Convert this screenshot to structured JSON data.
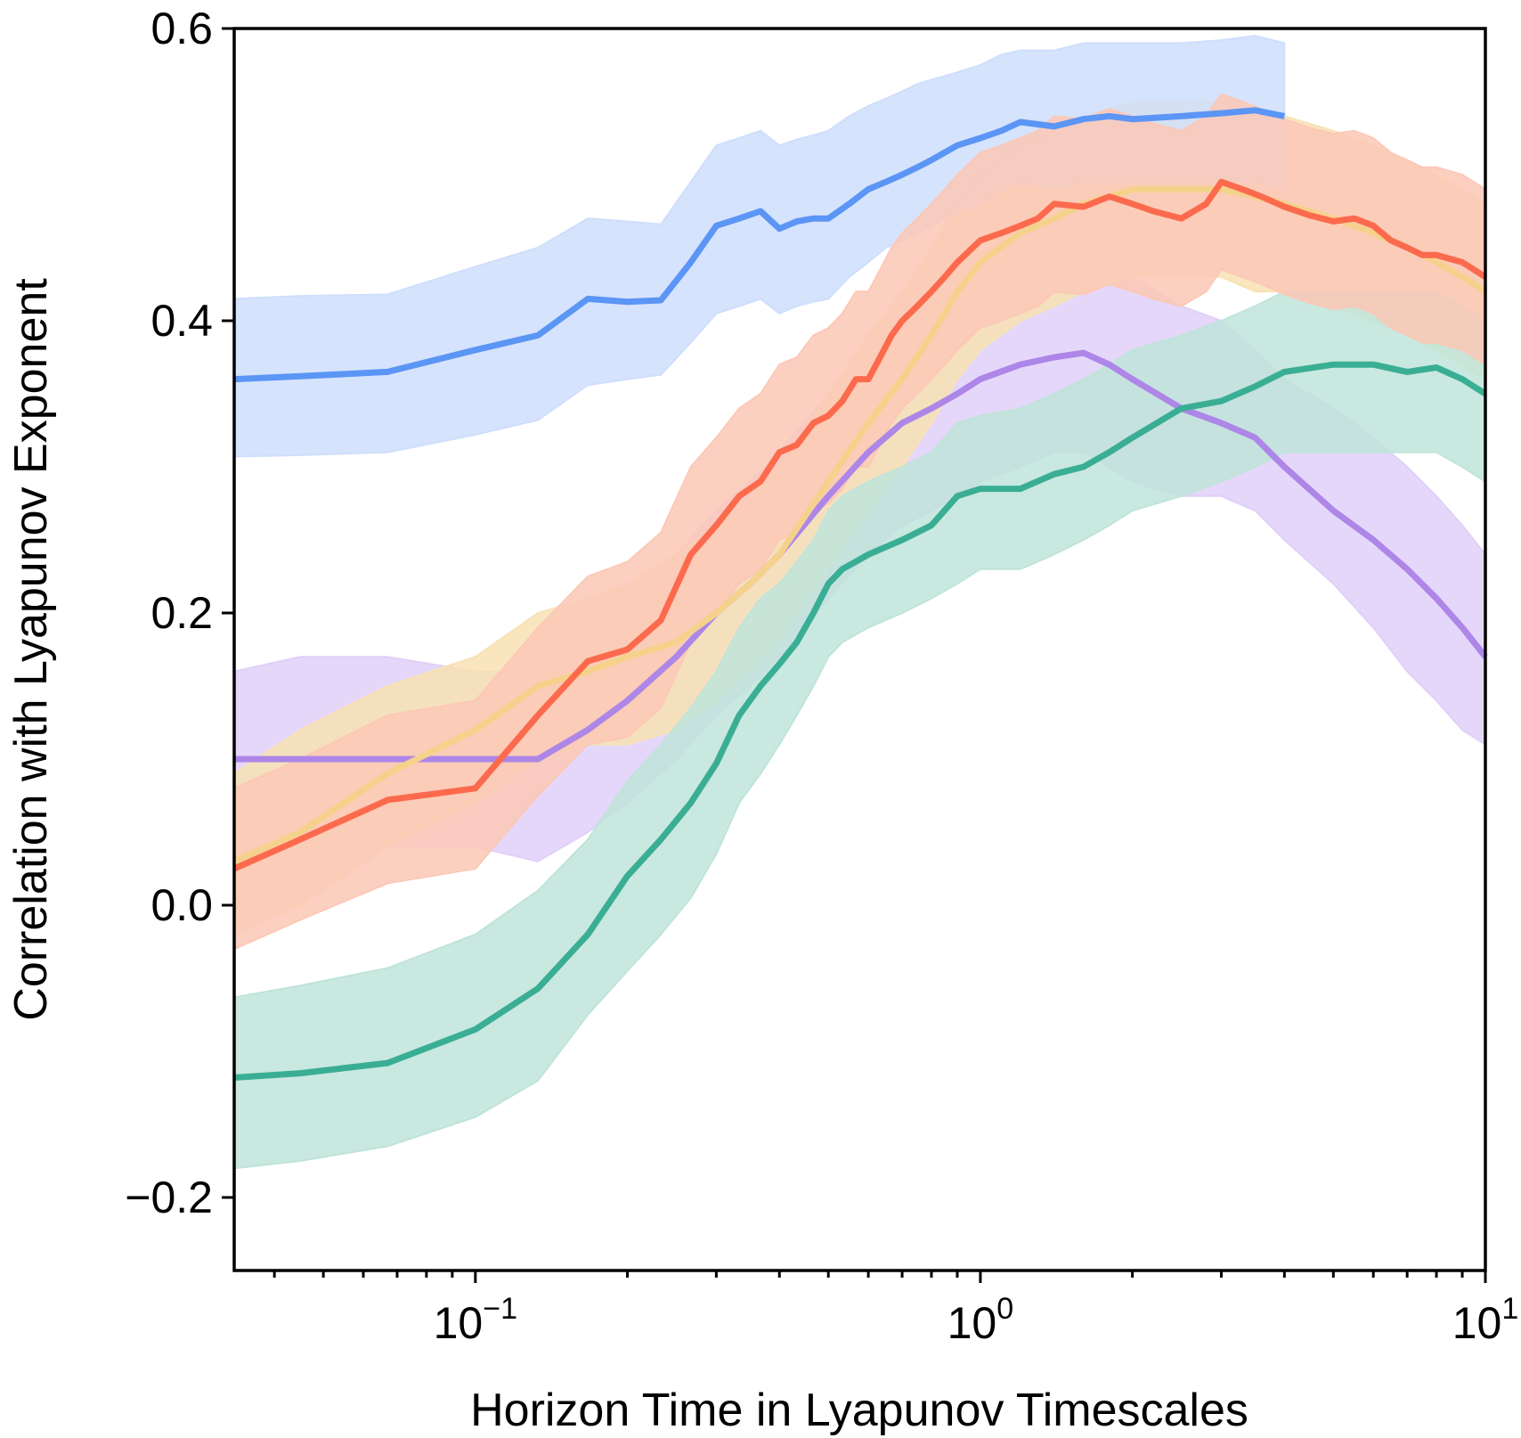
{
  "chart_data": {
    "type": "line",
    "title": "",
    "xlabel": "Horizon Time in Lyapunov Timescales",
    "ylabel": "Correlation with Lyapunov Exponent",
    "xscale": "log",
    "xlim": [
      0.0333,
      10
    ],
    "ylim": [
      -0.25,
      0.6
    ],
    "x_ticks": [
      {
        "base": "10",
        "exp": "−1",
        "value": 0.1
      },
      {
        "base": "10",
        "exp": "0",
        "value": 1
      },
      {
        "base": "10",
        "exp": "1",
        "value": 10
      }
    ],
    "y_ticks": [
      {
        "label": "0.6",
        "value": 0.6
      },
      {
        "label": "0.4",
        "value": 0.4
      },
      {
        "label": "0.2",
        "value": 0.2
      },
      {
        "label": "0.0",
        "value": 0.0
      },
      {
        "label": "−0.2",
        "value": -0.2
      }
    ],
    "grid": false,
    "legend": "none",
    "series": [
      {
        "color": "#ad86e8",
        "band_color": "#e0d0f8",
        "x": [
          0.0333,
          0.045,
          0.067,
          0.1,
          0.133,
          0.167,
          0.2,
          0.25,
          0.3,
          0.35,
          0.4,
          0.5,
          0.6,
          0.7,
          0.8,
          0.9,
          1.0,
          1.2,
          1.4,
          1.6,
          1.8,
          2.0,
          2.5,
          3.0,
          3.5,
          4.0,
          5.0,
          6.0,
          7.0,
          8.0,
          9.0,
          10.0
        ],
        "y": [
          0.1,
          0.1,
          0.1,
          0.1,
          0.1,
          0.12,
          0.14,
          0.17,
          0.2,
          0.22,
          0.24,
          0.28,
          0.31,
          0.33,
          0.34,
          0.35,
          0.36,
          0.37,
          0.375,
          0.378,
          0.37,
          0.36,
          0.34,
          0.33,
          0.32,
          0.3,
          0.27,
          0.25,
          0.23,
          0.21,
          0.19,
          0.17
        ],
        "lower": [
          0.04,
          0.04,
          0.04,
          0.04,
          0.03,
          0.05,
          0.07,
          0.1,
          0.13,
          0.15,
          0.17,
          0.21,
          0.24,
          0.26,
          0.27,
          0.28,
          0.29,
          0.3,
          0.31,
          0.31,
          0.3,
          0.29,
          0.28,
          0.28,
          0.27,
          0.25,
          0.22,
          0.19,
          0.16,
          0.14,
          0.12,
          0.11
        ],
        "upper": [
          0.16,
          0.17,
          0.17,
          0.16,
          0.16,
          0.18,
          0.2,
          0.24,
          0.27,
          0.29,
          0.31,
          0.35,
          0.38,
          0.4,
          0.41,
          0.42,
          0.43,
          0.44,
          0.45,
          0.45,
          0.44,
          0.43,
          0.41,
          0.4,
          0.38,
          0.36,
          0.34,
          0.32,
          0.3,
          0.28,
          0.26,
          0.24
        ]
      },
      {
        "color": "#f5d28c",
        "band_color": "#f8e2b4",
        "x": [
          0.0333,
          0.045,
          0.067,
          0.1,
          0.133,
          0.167,
          0.2,
          0.25,
          0.3,
          0.35,
          0.4,
          0.5,
          0.6,
          0.7,
          0.8,
          0.9,
          1.0,
          1.2,
          1.4,
          1.6,
          1.8,
          2.0,
          2.5,
          3.0,
          3.5,
          4.0,
          5.0,
          6.0,
          7.0,
          8.0,
          9.0,
          10.0
        ],
        "y": [
          0.03,
          0.05,
          0.09,
          0.12,
          0.15,
          0.16,
          0.17,
          0.18,
          0.2,
          0.22,
          0.24,
          0.29,
          0.33,
          0.36,
          0.39,
          0.42,
          0.44,
          0.46,
          0.47,
          0.48,
          0.485,
          0.49,
          0.49,
          0.49,
          0.485,
          0.48,
          0.47,
          0.46,
          0.45,
          0.44,
          0.43,
          0.42
        ],
        "lower": [
          -0.02,
          0.0,
          0.04,
          0.07,
          0.1,
          0.11,
          0.11,
          0.12,
          0.14,
          0.16,
          0.18,
          0.23,
          0.27,
          0.3,
          0.33,
          0.36,
          0.38,
          0.4,
          0.41,
          0.42,
          0.425,
          0.43,
          0.43,
          0.43,
          0.42,
          0.42,
          0.41,
          0.4,
          0.39,
          0.38,
          0.37,
          0.36
        ],
        "upper": [
          0.09,
          0.12,
          0.15,
          0.17,
          0.2,
          0.21,
          0.22,
          0.24,
          0.26,
          0.28,
          0.3,
          0.35,
          0.39,
          0.42,
          0.45,
          0.48,
          0.5,
          0.52,
          0.53,
          0.54,
          0.545,
          0.55,
          0.55,
          0.55,
          0.545,
          0.54,
          0.53,
          0.52,
          0.51,
          0.5,
          0.49,
          0.48
        ]
      },
      {
        "color": "#3aae94",
        "band_color": "#bfe4da",
        "x": [
          0.0333,
          0.045,
          0.067,
          0.1,
          0.133,
          0.167,
          0.2,
          0.233,
          0.267,
          0.3,
          0.333,
          0.367,
          0.4,
          0.433,
          0.467,
          0.5,
          0.533,
          0.6,
          0.7,
          0.8,
          0.9,
          1.0,
          1.2,
          1.4,
          1.6,
          1.8,
          2.0,
          2.5,
          3.0,
          3.5,
          4.0,
          5.0,
          6.0,
          7.0,
          8.0,
          9.0,
          10.0
        ],
        "y": [
          -0.118,
          -0.115,
          -0.108,
          -0.085,
          -0.057,
          -0.02,
          0.02,
          0.045,
          0.07,
          0.097,
          0.13,
          0.15,
          0.165,
          0.18,
          0.2,
          0.22,
          0.23,
          0.24,
          0.25,
          0.26,
          0.28,
          0.285,
          0.285,
          0.295,
          0.3,
          0.31,
          0.32,
          0.34,
          0.345,
          0.355,
          0.365,
          0.37,
          0.37,
          0.365,
          0.368,
          0.36,
          0.35
        ],
        "lower": [
          -0.18,
          -0.175,
          -0.165,
          -0.145,
          -0.12,
          -0.075,
          -0.045,
          -0.02,
          0.005,
          0.035,
          0.07,
          0.09,
          0.11,
          0.13,
          0.15,
          0.17,
          0.18,
          0.19,
          0.2,
          0.21,
          0.22,
          0.23,
          0.23,
          0.24,
          0.25,
          0.26,
          0.27,
          0.28,
          0.29,
          0.3,
          0.31,
          0.31,
          0.31,
          0.31,
          0.31,
          0.3,
          0.29
        ],
        "upper": [
          -0.063,
          -0.055,
          -0.043,
          -0.02,
          0.01,
          0.045,
          0.085,
          0.11,
          0.135,
          0.16,
          0.19,
          0.21,
          0.22,
          0.235,
          0.25,
          0.27,
          0.28,
          0.29,
          0.3,
          0.31,
          0.33,
          0.335,
          0.34,
          0.35,
          0.36,
          0.37,
          0.38,
          0.39,
          0.4,
          0.41,
          0.42,
          0.42,
          0.42,
          0.42,
          0.42,
          0.41,
          0.4
        ]
      },
      {
        "color": "#5b95f5",
        "band_color": "#cfdefc",
        "x": [
          0.0333,
          0.045,
          0.067,
          0.1,
          0.133,
          0.167,
          0.2,
          0.233,
          0.267,
          0.3,
          0.333,
          0.367,
          0.4,
          0.433,
          0.467,
          0.5,
          0.55,
          0.6,
          0.65,
          0.7,
          0.75,
          0.8,
          0.9,
          1.0,
          1.1,
          1.2,
          1.4,
          1.6,
          1.8,
          2.0,
          2.5,
          3.0,
          3.5,
          4.0
        ],
        "y": [
          0.36,
          0.362,
          0.365,
          0.38,
          0.39,
          0.415,
          0.413,
          0.414,
          0.44,
          0.465,
          0.47,
          0.475,
          0.463,
          0.468,
          0.47,
          0.47,
          0.48,
          0.49,
          0.495,
          0.5,
          0.505,
          0.51,
          0.52,
          0.525,
          0.53,
          0.536,
          0.533,
          0.538,
          0.54,
          0.538,
          0.54,
          0.542,
          0.544,
          0.54
        ],
        "lower": [
          0.307,
          0.308,
          0.31,
          0.322,
          0.332,
          0.356,
          0.36,
          0.363,
          0.385,
          0.405,
          0.41,
          0.415,
          0.405,
          0.41,
          0.413,
          0.415,
          0.43,
          0.44,
          0.45,
          0.455,
          0.46,
          0.465,
          0.475,
          0.48,
          0.49,
          0.495,
          0.49,
          0.495,
          0.495,
          0.495,
          0.495,
          0.495,
          0.495,
          0.49
        ],
        "upper": [
          0.415,
          0.417,
          0.418,
          0.437,
          0.45,
          0.47,
          0.468,
          0.466,
          0.495,
          0.52,
          0.525,
          0.53,
          0.52,
          0.524,
          0.527,
          0.53,
          0.54,
          0.547,
          0.552,
          0.557,
          0.562,
          0.565,
          0.57,
          0.575,
          0.582,
          0.585,
          0.585,
          0.59,
          0.59,
          0.59,
          0.59,
          0.592,
          0.595,
          0.59
        ]
      },
      {
        "color": "#fc6a4e",
        "band_color": "#fcc8b6",
        "x": [
          0.0333,
          0.045,
          0.067,
          0.1,
          0.133,
          0.167,
          0.2,
          0.233,
          0.267,
          0.3,
          0.333,
          0.367,
          0.4,
          0.433,
          0.467,
          0.5,
          0.533,
          0.567,
          0.6,
          0.633,
          0.667,
          0.7,
          0.75,
          0.8,
          0.85,
          0.9,
          1.0,
          1.1,
          1.2,
          1.3,
          1.4,
          1.6,
          1.8,
          2.0,
          2.2,
          2.5,
          2.8,
          3.0,
          3.3,
          3.6,
          4.0,
          4.5,
          5.0,
          5.5,
          6.0,
          6.5,
          7.0,
          7.5,
          8.0,
          9.0,
          10.0
        ],
        "y": [
          0.025,
          0.045,
          0.072,
          0.08,
          0.13,
          0.167,
          0.175,
          0.195,
          0.24,
          0.26,
          0.28,
          0.29,
          0.31,
          0.315,
          0.33,
          0.335,
          0.345,
          0.36,
          0.36,
          0.375,
          0.39,
          0.4,
          0.41,
          0.42,
          0.43,
          0.44,
          0.455,
          0.46,
          0.465,
          0.47,
          0.48,
          0.478,
          0.485,
          0.48,
          0.475,
          0.47,
          0.48,
          0.495,
          0.49,
          0.485,
          0.478,
          0.472,
          0.468,
          0.47,
          0.465,
          0.455,
          0.45,
          0.445,
          0.445,
          0.44,
          0.43
        ],
        "lower": [
          -0.03,
          -0.01,
          0.015,
          0.025,
          0.075,
          0.11,
          0.115,
          0.135,
          0.18,
          0.2,
          0.22,
          0.23,
          0.25,
          0.255,
          0.27,
          0.275,
          0.285,
          0.3,
          0.3,
          0.315,
          0.33,
          0.34,
          0.35,
          0.36,
          0.37,
          0.38,
          0.395,
          0.4,
          0.405,
          0.41,
          0.42,
          0.418,
          0.425,
          0.42,
          0.415,
          0.41,
          0.42,
          0.435,
          0.43,
          0.425,
          0.418,
          0.412,
          0.408,
          0.41,
          0.405,
          0.395,
          0.39,
          0.385,
          0.385,
          0.38,
          0.37
        ],
        "upper": [
          0.08,
          0.1,
          0.13,
          0.14,
          0.19,
          0.225,
          0.235,
          0.255,
          0.3,
          0.32,
          0.34,
          0.35,
          0.37,
          0.375,
          0.39,
          0.395,
          0.405,
          0.42,
          0.42,
          0.435,
          0.45,
          0.46,
          0.47,
          0.48,
          0.49,
          0.5,
          0.515,
          0.52,
          0.525,
          0.53,
          0.54,
          0.538,
          0.545,
          0.54,
          0.535,
          0.53,
          0.54,
          0.555,
          0.55,
          0.545,
          0.538,
          0.532,
          0.528,
          0.53,
          0.525,
          0.515,
          0.51,
          0.505,
          0.505,
          0.5,
          0.49
        ]
      }
    ]
  }
}
